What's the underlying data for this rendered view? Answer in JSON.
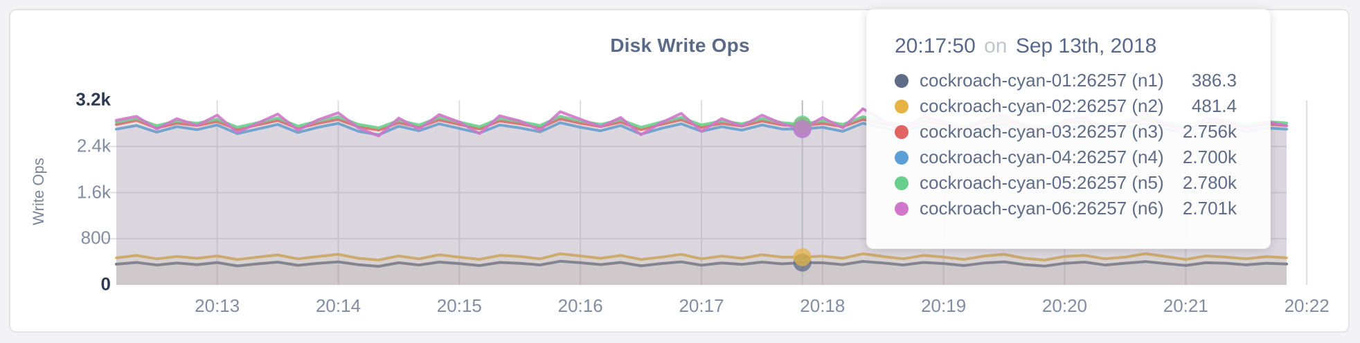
{
  "panel": {
    "title": "Disk Write Ops",
    "y_axis_label": "Write Ops"
  },
  "tooltip": {
    "time": "20:17:50",
    "separator": "on",
    "date": "Sep 13th, 2018",
    "rows": [
      {
        "name": "cockroach-cyan-01:26257 (n1)",
        "value": "386.3",
        "color": "#5f6c87"
      },
      {
        "name": "cockroach-cyan-02:26257 (n2)",
        "value": "481.4",
        "color": "#e6b444"
      },
      {
        "name": "cockroach-cyan-03:26257 (n3)",
        "value": "2.756k",
        "color": "#e06462"
      },
      {
        "name": "cockroach-cyan-04:26257 (n4)",
        "value": "2.700k",
        "color": "#5c9fd6"
      },
      {
        "name": "cockroach-cyan-05:26257 (n5)",
        "value": "2.780k",
        "color": "#68d08c"
      },
      {
        "name": "cockroach-cyan-06:26257 (n6)",
        "value": "2.701k",
        "color": "#d077c9"
      }
    ]
  },
  "chart_data": {
    "type": "area",
    "title": "Disk Write Ops",
    "xlabel": "",
    "ylabel": "Write Ops",
    "ylim": [
      0,
      3200
    ],
    "grid": true,
    "x_start": "20:12:10",
    "x_end": "20:21:50",
    "x_interval_seconds": 10,
    "x_ticks": [
      "20:13",
      "20:14",
      "20:15",
      "20:16",
      "20:17",
      "20:18",
      "20:19",
      "20:20",
      "20:21",
      "20:22"
    ],
    "y_ticks": [
      {
        "label": "3.2k",
        "value": 3200
      },
      {
        "label": "2.4k",
        "value": 2400
      },
      {
        "label": "1.6k",
        "value": 1600
      },
      {
        "label": "800",
        "value": 800
      },
      {
        "label": "0",
        "value": 0
      }
    ],
    "hover_index": 34,
    "hover_time": "20:17:50",
    "series": [
      {
        "name": "cockroach-cyan-01:26257 (n1)",
        "color": "#5f6c87",
        "hover_value": 386.3,
        "values": [
          360,
          390,
          345,
          380,
          350,
          388,
          330,
          365,
          395,
          340,
          375,
          400,
          350,
          322,
          385,
          345,
          395,
          370,
          336,
          390,
          375,
          346,
          410,
          385,
          352,
          390,
          331,
          370,
          400,
          342,
          380,
          356,
          395,
          365,
          386.3,
          384,
          352,
          408,
          380,
          346,
          390,
          370,
          336,
          380,
          400,
          352,
          326,
          375,
          396,
          345,
          376,
          404,
          370,
          337,
          385,
          376,
          347,
          376,
          362
        ]
      },
      {
        "name": "cockroach-cyan-02:26257 (n2)",
        "color": "#e6b444",
        "hover_value": 481.4,
        "values": [
          470,
          510,
          452,
          492,
          462,
          502,
          440,
          482,
          520,
          452,
          492,
          530,
          462,
          432,
          502,
          452,
          522,
          482,
          442,
          512,
          492,
          452,
          540,
          502,
          462,
          512,
          441,
          482,
          530,
          452,
          500,
          462,
          522,
          482,
          481.4,
          498,
          462,
          540,
          492,
          452,
          512,
          482,
          442,
          500,
          530,
          462,
          432,
          492,
          512,
          452,
          482,
          542,
          492,
          442,
          502,
          482,
          452,
          490,
          470
        ]
      },
      {
        "name": "cockroach-cyan-03:26257 (n3)",
        "color": "#e06462",
        "hover_value": 2756,
        "values": [
          2780,
          2852,
          2718,
          2802,
          2760,
          2832,
          2692,
          2772,
          2850,
          2712,
          2800,
          2868,
          2740,
          2682,
          2812,
          2732,
          2858,
          2782,
          2702,
          2842,
          2792,
          2722,
          2878,
          2802,
          2742,
          2822,
          2690,
          2782,
          2862,
          2730,
          2800,
          2752,
          2840,
          2772,
          2756,
          2798,
          2742,
          2868,
          2792,
          2722,
          2832,
          2782,
          2700,
          2812,
          2850,
          2742,
          2692,
          2800,
          2832,
          2722,
          2790,
          2862,
          2772,
          2710,
          2822,
          2800,
          2732,
          2788,
          2760
        ]
      },
      {
        "name": "cockroach-cyan-04:26257 (n4)",
        "color": "#5c9fd6",
        "hover_value": 2700,
        "values": [
          2700,
          2762,
          2648,
          2742,
          2692,
          2772,
          2622,
          2702,
          2782,
          2642,
          2732,
          2800,
          2662,
          2602,
          2752,
          2672,
          2792,
          2712,
          2632,
          2772,
          2722,
          2652,
          2812,
          2732,
          2672,
          2762,
          2612,
          2712,
          2792,
          2662,
          2742,
          2682,
          2772,
          2702,
          2700,
          2732,
          2662,
          2802,
          2722,
          2652,
          2772,
          2712,
          2632,
          2742,
          2782,
          2672,
          2612,
          2732,
          2762,
          2652,
          2722,
          2792,
          2702,
          2642,
          2752,
          2730,
          2662,
          2722,
          2700
        ]
      },
      {
        "name": "cockroach-cyan-05:26257 (n5)",
        "color": "#68d08c",
        "hover_value": 2780,
        "values": [
          2822,
          2882,
          2760,
          2842,
          2802,
          2872,
          2732,
          2812,
          2892,
          2752,
          2842,
          2912,
          2782,
          2722,
          2852,
          2772,
          2902,
          2822,
          2742,
          2882,
          2832,
          2762,
          2922,
          2842,
          2782,
          2862,
          2732,
          2822,
          2902,
          2772,
          2842,
          2792,
          2882,
          2812,
          2780,
          2848,
          2782,
          2912,
          2832,
          2762,
          2872,
          2822,
          2742,
          2852,
          2892,
          2782,
          2732,
          2842,
          2872,
          2762,
          2832,
          2902,
          2812,
          2752,
          2862,
          2840,
          2772,
          2832,
          2806
        ]
      },
      {
        "name": "cockroach-cyan-06:26257 (n6)",
        "color": "#d077c9",
        "hover_value": 2701,
        "values": [
          2852,
          2922,
          2702,
          2882,
          2762,
          2942,
          2642,
          2802,
          2962,
          2682,
          2862,
          2982,
          2722,
          2582,
          2892,
          2702,
          2952,
          2822,
          2622,
          2932,
          2842,
          2682,
          3002,
          2872,
          2742,
          2902,
          2602,
          2812,
          2972,
          2662,
          2882,
          2752,
          2942,
          2792,
          2701,
          2902,
          2722,
          3052,
          2852,
          2682,
          2922,
          2832,
          2642,
          2872,
          2952,
          2722,
          2602,
          2852,
          2912,
          2682,
          2832,
          2972,
          2792,
          2632,
          2892,
          2852,
          2692,
          2822,
          2760
        ]
      }
    ]
  }
}
